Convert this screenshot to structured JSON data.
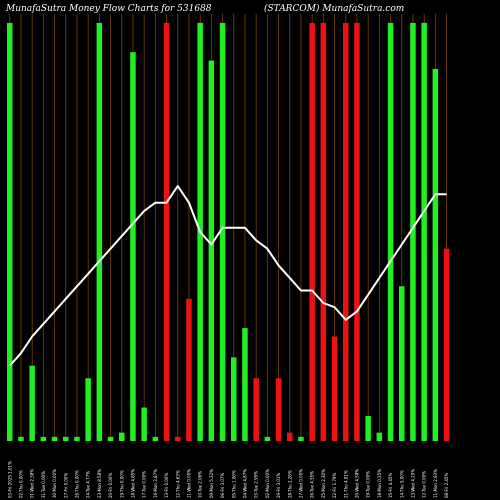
{
  "header": {
    "title_left": "MunafaSutra  Money Flow  Charts for 531688",
    "title_right": "(STARCOM) MunafaSutra.com"
  },
  "chart_data": {
    "type": "bar",
    "grid": "vertical",
    "categories": [
      "03-Fri-2025 1.01%",
      "02-Thu 0.00%",
      "01-Wed 2.38%",
      "31-Tue 0.00%",
      "30-Mon 0.00%",
      "27-Fri 0.00%",
      "26-Thu 0.00%",
      "24-Tue 4.77%",
      "23-Mon 8.58%",
      "20-Fri 0.00%",
      "19-Thu 0.00%",
      "18-Wed 4.85%",
      "17-Tue 0.00%",
      "16-Mon 3.87%",
      "13-Fri 0.00%",
      "12-Thu 4.63%",
      "11-Wed 0.00%",
      "10-Tue 2.06%",
      "09-Mon 5.32%",
      "06-Fri 3.07%",
      "05-Thu 1.06%",
      "04-Wed 4.87%",
      "03-Tue 2.95%",
      "02-Mon 0.00%",
      "29-Fri 3.01%",
      "28-Thu 2.26%",
      "27-Wed 0.00%",
      "26-Tue 4.55%",
      "25-Mon 2.30%",
      "22-Fri 1.79%",
      "21-Thu 4.91%",
      "20-Wed 4.59%",
      "19-Tue 0.00%",
      "18-Mon 0.35%",
      "15-Fri 4.45%",
      "14-Thu 5.00%",
      "13-Wed 4.20%",
      "12-Tue 0.00%",
      "11-Mon 2.93%",
      "08-Fri 2.45%"
    ],
    "values": [
      100,
      1,
      18,
      1,
      1,
      1,
      1,
      15,
      100,
      1,
      2,
      93,
      8,
      1,
      100,
      1,
      34,
      100,
      91,
      100,
      20,
      27,
      15,
      1,
      15,
      2,
      1,
      100,
      100,
      25,
      100,
      100,
      6,
      2,
      100,
      37,
      100,
      100,
      89,
      46
    ],
    "colors": [
      "green",
      "green",
      "green",
      "green",
      "green",
      "green",
      "green",
      "green",
      "green",
      "green",
      "green",
      "green",
      "green",
      "green",
      "red",
      "red",
      "red",
      "green",
      "green",
      "green",
      "green",
      "green",
      "red",
      "green",
      "red",
      "red",
      "green",
      "red",
      "red",
      "red",
      "red",
      "red",
      "green",
      "green",
      "green",
      "green",
      "green",
      "green",
      "green",
      "red"
    ],
    "line": [
      18,
      21,
      25,
      28,
      31,
      34,
      37,
      40,
      43,
      46,
      49,
      52,
      55,
      57,
      57,
      61,
      57,
      50,
      47,
      51,
      51,
      51,
      48,
      46,
      42,
      39,
      36,
      36,
      33,
      32,
      29,
      31,
      35,
      39,
      43,
      47,
      51,
      55,
      59,
      59
    ],
    "ylim": [
      0,
      105
    ],
    "palette": {
      "green": "#22ee22",
      "red": "#ee1111",
      "line": "#ffffff",
      "grid": "#8a4a00",
      "background": "#000000"
    }
  }
}
